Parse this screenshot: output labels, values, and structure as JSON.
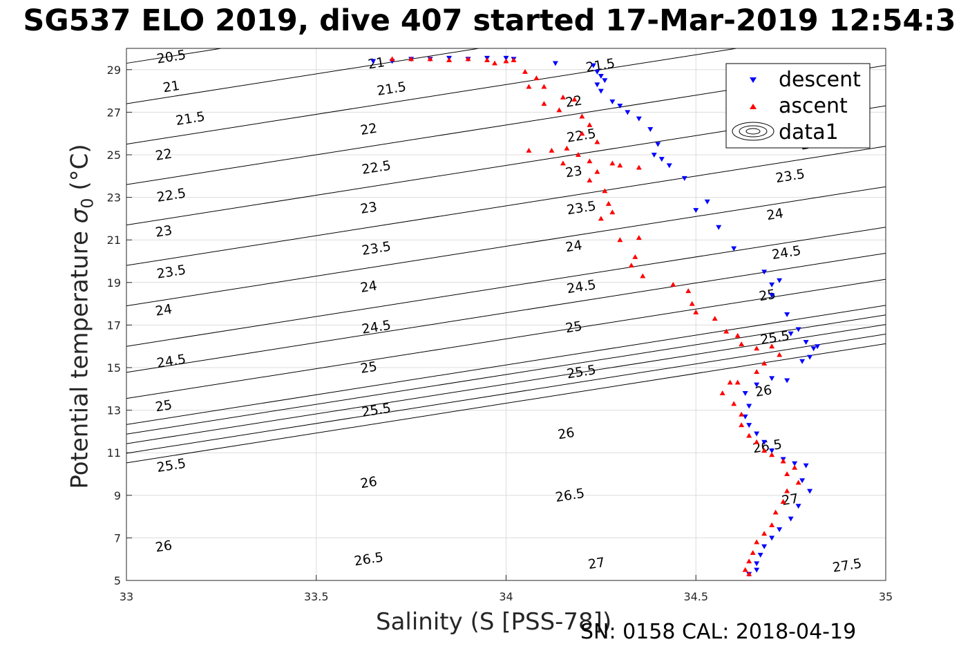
{
  "title": "SG537 ELO 2019, dive 407 started 17-Mar-2019 12:54:3",
  "footer": "SN: 0158  CAL: 2018-04-19",
  "chart_data": {
    "type": "scatter",
    "xlabel": "Salinity (S [PSS-78])",
    "ylabel": "Potential temperature σ₀ (°C)",
    "xlim": [
      33,
      35
    ],
    "ylim": [
      5,
      30
    ],
    "xticks": [
      "33",
      "33.5",
      "34",
      "34.5",
      "35"
    ],
    "yticks": [
      "5",
      "7",
      "9",
      "11",
      "13",
      "15",
      "17",
      "19",
      "21",
      "23",
      "25",
      "27",
      "29"
    ],
    "grid": true,
    "legend": {
      "placement": "top-right",
      "entries": [
        "descent",
        "ascent",
        "data1"
      ]
    },
    "colors": {
      "descent": "#0000ff",
      "ascent": "#ff0000",
      "contour": "#000000"
    },
    "contours": {
      "levels": [
        20.5,
        21,
        21.5,
        22,
        22.5,
        23,
        23.5,
        24,
        24.5,
        25,
        25.5,
        26,
        26.5,
        27,
        27.5
      ],
      "labels": [
        {
          "text": "20.5",
          "x": 33.12,
          "y": 29.4
        },
        {
          "text": "21",
          "x": 33.12,
          "y": 28.0
        },
        {
          "text": "21.5",
          "x": 33.17,
          "y": 26.5
        },
        {
          "text": "22",
          "x": 33.1,
          "y": 24.8
        },
        {
          "text": "22.5",
          "x": 33.12,
          "y": 22.9
        },
        {
          "text": "23",
          "x": 33.1,
          "y": 21.2
        },
        {
          "text": "23.5",
          "x": 33.12,
          "y": 19.3
        },
        {
          "text": "24",
          "x": 33.1,
          "y": 17.5
        },
        {
          "text": "24.5",
          "x": 33.12,
          "y": 15.1
        },
        {
          "text": "25",
          "x": 33.1,
          "y": 13.0
        },
        {
          "text": "25.5",
          "x": 33.12,
          "y": 10.2
        },
        {
          "text": "26",
          "x": 33.1,
          "y": 6.4
        },
        {
          "text": "21",
          "x": 33.66,
          "y": 29.1
        },
        {
          "text": "21.5",
          "x": 33.7,
          "y": 27.9
        },
        {
          "text": "22",
          "x": 33.64,
          "y": 26.0
        },
        {
          "text": "22.5",
          "x": 33.66,
          "y": 24.2
        },
        {
          "text": "23",
          "x": 33.64,
          "y": 22.3
        },
        {
          "text": "23.5",
          "x": 33.66,
          "y": 20.4
        },
        {
          "text": "24",
          "x": 33.64,
          "y": 18.6
        },
        {
          "text": "24.5",
          "x": 33.66,
          "y": 16.7
        },
        {
          "text": "25",
          "x": 33.64,
          "y": 14.8
        },
        {
          "text": "25.5",
          "x": 33.66,
          "y": 12.8
        },
        {
          "text": "26",
          "x": 33.64,
          "y": 9.4
        },
        {
          "text": "26.5",
          "x": 33.64,
          "y": 5.8
        },
        {
          "text": "21.5",
          "x": 34.25,
          "y": 29.0
        },
        {
          "text": "22",
          "x": 34.18,
          "y": 27.3
        },
        {
          "text": "22.5",
          "x": 34.2,
          "y": 25.7
        },
        {
          "text": "23",
          "x": 34.18,
          "y": 24.0
        },
        {
          "text": "23.5",
          "x": 34.2,
          "y": 22.3
        },
        {
          "text": "24",
          "x": 34.18,
          "y": 20.5
        },
        {
          "text": "24.5",
          "x": 34.2,
          "y": 18.6
        },
        {
          "text": "25",
          "x": 34.18,
          "y": 16.7
        },
        {
          "text": "25.5",
          "x": 34.2,
          "y": 14.6
        },
        {
          "text": "26",
          "x": 34.16,
          "y": 11.7
        },
        {
          "text": "26.5",
          "x": 34.17,
          "y": 8.8
        },
        {
          "text": "27",
          "x": 34.24,
          "y": 5.6
        },
        {
          "text": "23",
          "x": 34.8,
          "y": 25.3
        },
        {
          "text": "23.5",
          "x": 34.75,
          "y": 23.8
        },
        {
          "text": "24",
          "x": 34.71,
          "y": 22.0
        },
        {
          "text": "24.5",
          "x": 34.74,
          "y": 20.2
        },
        {
          "text": "25",
          "x": 34.69,
          "y": 18.2
        },
        {
          "text": "25.5",
          "x": 34.71,
          "y": 16.2
        },
        {
          "text": "26",
          "x": 34.68,
          "y": 13.7
        },
        {
          "text": "26.5",
          "x": 34.69,
          "y": 11.1
        },
        {
          "text": "27",
          "x": 34.75,
          "y": 8.6
        },
        {
          "text": "27.5",
          "x": 34.9,
          "y": 5.5
        }
      ]
    },
    "series": [
      {
        "name": "descent",
        "marker": "triangle-down",
        "points": [
          [
            33.65,
            29.4
          ],
          [
            33.7,
            29.4
          ],
          [
            33.75,
            29.5
          ],
          [
            33.8,
            29.5
          ],
          [
            33.85,
            29.55
          ],
          [
            33.9,
            29.5
          ],
          [
            33.95,
            29.55
          ],
          [
            34.0,
            29.55
          ],
          [
            34.02,
            29.5
          ],
          [
            34.13,
            29.3
          ],
          [
            34.23,
            29.2
          ],
          [
            34.24,
            28.9
          ],
          [
            34.25,
            28.7
          ],
          [
            34.26,
            28.5
          ],
          [
            34.24,
            28.3
          ],
          [
            34.25,
            28.0
          ],
          [
            34.28,
            27.5
          ],
          [
            34.3,
            27.3
          ],
          [
            34.32,
            27.0
          ],
          [
            34.35,
            26.7
          ],
          [
            34.38,
            26.2
          ],
          [
            34.4,
            25.5
          ],
          [
            34.39,
            25.0
          ],
          [
            34.41,
            24.8
          ],
          [
            34.43,
            24.5
          ],
          [
            34.47,
            23.9
          ],
          [
            34.5,
            22.4
          ],
          [
            34.53,
            22.8
          ],
          [
            34.56,
            21.6
          ],
          [
            34.6,
            20.6
          ],
          [
            34.68,
            19.5
          ],
          [
            34.7,
            18.9
          ],
          [
            34.72,
            19.1
          ],
          [
            34.7,
            18.4
          ],
          [
            34.74,
            17.5
          ],
          [
            34.75,
            16.6
          ],
          [
            34.77,
            16.8
          ],
          [
            34.79,
            16.2
          ],
          [
            34.81,
            15.9
          ],
          [
            34.82,
            16.0
          ],
          [
            34.8,
            15.5
          ],
          [
            34.78,
            15.3
          ],
          [
            34.74,
            14.4
          ],
          [
            34.7,
            14.5
          ],
          [
            34.66,
            14.2
          ],
          [
            34.63,
            13.8
          ],
          [
            34.64,
            13.2
          ],
          [
            34.63,
            12.7
          ],
          [
            34.64,
            12.3
          ],
          [
            34.66,
            11.9
          ],
          [
            34.68,
            11.5
          ],
          [
            34.7,
            11.1
          ],
          [
            34.73,
            10.7
          ],
          [
            34.76,
            10.5
          ],
          [
            34.79,
            10.4
          ],
          [
            34.78,
            9.7
          ],
          [
            34.8,
            9.2
          ],
          [
            34.77,
            8.5
          ],
          [
            34.75,
            7.9
          ],
          [
            34.72,
            7.4
          ],
          [
            34.7,
            7.0
          ],
          [
            34.68,
            6.6
          ],
          [
            34.67,
            6.2
          ],
          [
            34.66,
            5.8
          ],
          [
            34.66,
            5.5
          ],
          [
            34.64,
            5.3
          ]
        ]
      },
      {
        "name": "ascent",
        "marker": "triangle-up",
        "points": [
          [
            33.7,
            29.5
          ],
          [
            33.75,
            29.5
          ],
          [
            33.8,
            29.5
          ],
          [
            33.85,
            29.45
          ],
          [
            33.9,
            29.5
          ],
          [
            33.95,
            29.45
          ],
          [
            33.97,
            29.3
          ],
          [
            34.0,
            29.4
          ],
          [
            34.02,
            29.45
          ],
          [
            34.05,
            28.9
          ],
          [
            34.08,
            28.6
          ],
          [
            34.06,
            28.2
          ],
          [
            34.1,
            28.2
          ],
          [
            34.15,
            27.7
          ],
          [
            34.18,
            27.6
          ],
          [
            34.1,
            27.4
          ],
          [
            34.14,
            27.1
          ],
          [
            34.2,
            26.8
          ],
          [
            34.22,
            26.4
          ],
          [
            34.2,
            26.0
          ],
          [
            34.24,
            25.6
          ],
          [
            34.12,
            25.2
          ],
          [
            34.06,
            25.2
          ],
          [
            34.16,
            25.3
          ],
          [
            34.19,
            25.0
          ],
          [
            34.15,
            24.6
          ],
          [
            34.22,
            24.7
          ],
          [
            34.28,
            24.6
          ],
          [
            34.3,
            24.5
          ],
          [
            34.35,
            24.4
          ],
          [
            34.24,
            24.2
          ],
          [
            34.22,
            23.8
          ],
          [
            34.26,
            23.3
          ],
          [
            34.27,
            22.7
          ],
          [
            34.25,
            22.0
          ],
          [
            34.28,
            22.3
          ],
          [
            34.3,
            21.0
          ],
          [
            34.35,
            21.1
          ],
          [
            34.34,
            20.2
          ],
          [
            34.33,
            19.8
          ],
          [
            34.36,
            19.3
          ],
          [
            34.44,
            18.9
          ],
          [
            34.48,
            18.6
          ],
          [
            34.49,
            18.0
          ],
          [
            34.5,
            17.6
          ],
          [
            34.55,
            17.3
          ],
          [
            34.58,
            16.7
          ],
          [
            34.61,
            16.5
          ],
          [
            34.62,
            16.1
          ],
          [
            34.66,
            15.9
          ],
          [
            34.7,
            16.0
          ],
          [
            34.72,
            15.6
          ],
          [
            34.68,
            15.2
          ],
          [
            34.66,
            14.8
          ],
          [
            34.61,
            14.3
          ],
          [
            34.59,
            14.3
          ],
          [
            34.57,
            13.8
          ],
          [
            34.6,
            13.3
          ],
          [
            34.62,
            12.8
          ],
          [
            34.62,
            12.3
          ],
          [
            34.64,
            11.8
          ],
          [
            34.66,
            11.5
          ],
          [
            34.68,
            11.1
          ],
          [
            34.7,
            10.9
          ],
          [
            34.73,
            10.6
          ],
          [
            34.76,
            10.3
          ],
          [
            34.74,
            10.0
          ],
          [
            34.77,
            9.6
          ],
          [
            34.74,
            9.2
          ],
          [
            34.73,
            8.7
          ],
          [
            34.71,
            8.2
          ],
          [
            34.7,
            7.6
          ],
          [
            34.68,
            7.2
          ],
          [
            34.66,
            6.8
          ],
          [
            34.65,
            6.3
          ],
          [
            34.64,
            5.9
          ],
          [
            34.63,
            5.5
          ],
          [
            34.64,
            5.3
          ]
        ]
      }
    ]
  }
}
